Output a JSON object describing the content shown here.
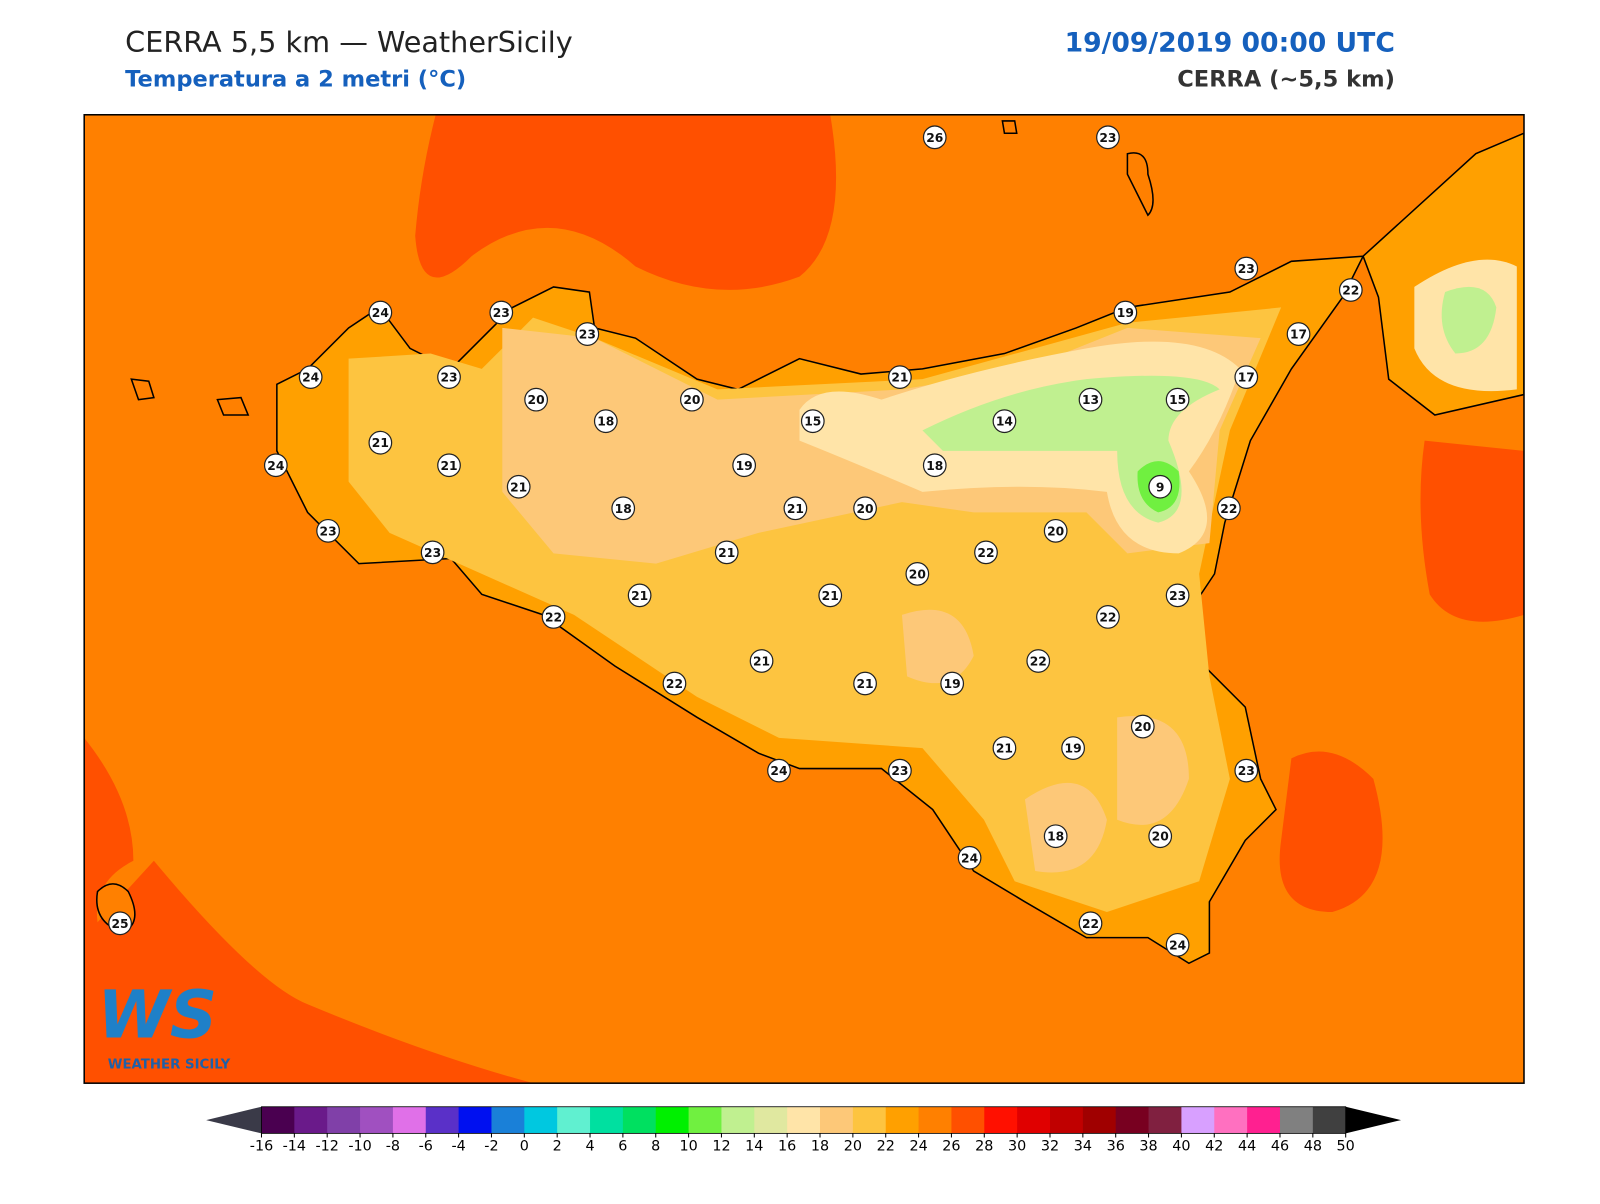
{
  "header": {
    "title": "CERRA 5,5 km — WeatherSicily",
    "subtitle": "Temperatura a 2 metri (°C)",
    "datetime": "19/09/2019 00:00 UTC",
    "model": "CERRA (~5,5 km)"
  },
  "stations": [
    26,
    23,
    23,
    22,
    24,
    23,
    23,
    19,
    17,
    24,
    23,
    21,
    17,
    20,
    20,
    13,
    15,
    18,
    15,
    14,
    21,
    24,
    21,
    19,
    18,
    21,
    9,
    18,
    21,
    20,
    22,
    23,
    20,
    23,
    21,
    22,
    20,
    21,
    21,
    23,
    22,
    22,
    21,
    22,
    22,
    21,
    19,
    20,
    21,
    19,
    24,
    23,
    23,
    18,
    20,
    24,
    25,
    22,
    24
  ],
  "logo": {
    "mark": "WS",
    "text": "WEATHER SICILY"
  },
  "colorbar": {
    "ticks": [
      -16,
      -14,
      -12,
      -10,
      -8,
      -6,
      -4,
      -2,
      0,
      2,
      4,
      6,
      8,
      10,
      12,
      14,
      16,
      18,
      20,
      22,
      24,
      26,
      28,
      30,
      32,
      34,
      36,
      38,
      40,
      42,
      44,
      46,
      48,
      50
    ],
    "colors": [
      "#4a0050",
      "#6a1a8a",
      "#8040a8",
      "#a050c0",
      "#e070e8",
      "#5a30c8",
      "#0010f0",
      "#1a80d8",
      "#00c8e0",
      "#60f0d0",
      "#00e0a0",
      "#00e060",
      "#00f000",
      "#70f040",
      "#c0f090",
      "#e0e8a0",
      "#ffe4a8",
      "#fdc878",
      "#fdc440",
      "#ffa000",
      "#ff8000",
      "#ff5000",
      "#ff1000",
      "#e00000",
      "#c00000",
      "#a00000",
      "#780020",
      "#802040",
      "#d8a0ff",
      "#ff70c0",
      "#ff2090",
      "#808080",
      "#404040"
    ],
    "under_color": "#3a3a48",
    "over_color": "#000000"
  }
}
